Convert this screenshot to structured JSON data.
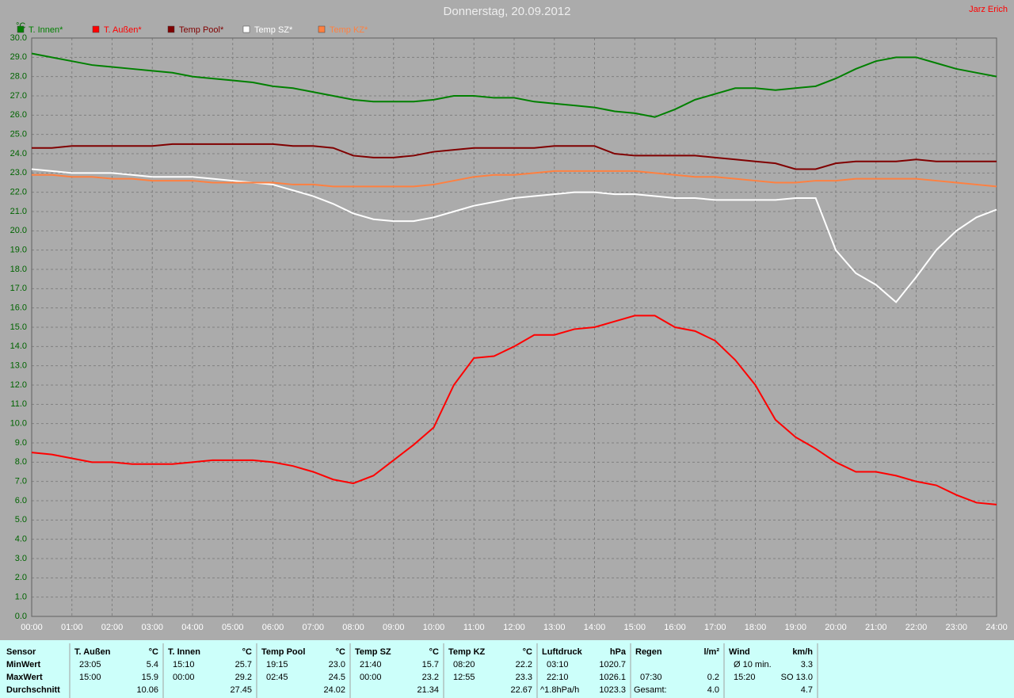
{
  "chart_data": {
    "type": "line",
    "title": "Donnerstag, 20.09.2012",
    "author": "Jarz Erich",
    "y_unit": "°C",
    "xlim": [
      0,
      24
    ],
    "ylim": [
      0,
      30
    ],
    "xticks": [
      {
        "value": 0,
        "label": "00:00"
      },
      {
        "value": 1,
        "label": "01:00"
      },
      {
        "value": 2,
        "label": "02:00"
      },
      {
        "value": 3,
        "label": "03:00"
      },
      {
        "value": 4,
        "label": "04:00"
      },
      {
        "value": 5,
        "label": "05:00"
      },
      {
        "value": 6,
        "label": "06:00"
      },
      {
        "value": 7,
        "label": "07:00"
      },
      {
        "value": 8,
        "label": "08:00"
      },
      {
        "value": 9,
        "label": "09:00"
      },
      {
        "value": 10,
        "label": "10:00"
      },
      {
        "value": 11,
        "label": "11:00"
      },
      {
        "value": 12,
        "label": "12:00"
      },
      {
        "value": 13,
        "label": "13:00"
      },
      {
        "value": 14,
        "label": "14:00"
      },
      {
        "value": 15,
        "label": "15:00"
      },
      {
        "value": 16,
        "label": "16:00"
      },
      {
        "value": 17,
        "label": "17:00"
      },
      {
        "value": 18,
        "label": "18:00"
      },
      {
        "value": 19,
        "label": "19:00"
      },
      {
        "value": 20,
        "label": "20:00"
      },
      {
        "value": 21,
        "label": "21:00"
      },
      {
        "value": 22,
        "label": "22:00"
      },
      {
        "value": 23,
        "label": "23:00"
      },
      {
        "value": 24,
        "label": "24:00"
      }
    ],
    "yticks": [
      {
        "value": 0,
        "label": "0.0"
      },
      {
        "value": 1,
        "label": "1.0"
      },
      {
        "value": 2,
        "label": "2.0"
      },
      {
        "value": 3,
        "label": "3.0"
      },
      {
        "value": 4,
        "label": "4.0"
      },
      {
        "value": 5,
        "label": "5.0"
      },
      {
        "value": 6,
        "label": "6.0"
      },
      {
        "value": 7,
        "label": "7.0"
      },
      {
        "value": 8,
        "label": "8.0"
      },
      {
        "value": 9,
        "label": "9.0"
      },
      {
        "value": 10,
        "label": "10.0"
      },
      {
        "value": 11,
        "label": "11.0"
      },
      {
        "value": 12,
        "label": "12.0"
      },
      {
        "value": 13,
        "label": "13.0"
      },
      {
        "value": 14,
        "label": "14.0"
      },
      {
        "value": 15,
        "label": "15.0"
      },
      {
        "value": 16,
        "label": "16.0"
      },
      {
        "value": 17,
        "label": "17.0"
      },
      {
        "value": 18,
        "label": "18.0"
      },
      {
        "value": 19,
        "label": "19.0"
      },
      {
        "value": 20,
        "label": "20.0"
      },
      {
        "value": 21,
        "label": "21.0"
      },
      {
        "value": 22,
        "label": "22.0"
      },
      {
        "value": 23,
        "label": "23.0"
      },
      {
        "value": 24,
        "label": "24.0"
      },
      {
        "value": 25,
        "label": "25.0"
      },
      {
        "value": 26,
        "label": "26.0"
      },
      {
        "value": 27,
        "label": "27.0"
      },
      {
        "value": 28,
        "label": "28.0"
      },
      {
        "value": 29,
        "label": "29.0"
      },
      {
        "value": 30,
        "label": "30.0"
      }
    ],
    "grid": true,
    "x": [
      0,
      0.5,
      1,
      1.5,
      2,
      2.5,
      3,
      3.5,
      4,
      4.5,
      5,
      5.5,
      6,
      6.5,
      7,
      7.5,
      8,
      8.5,
      9,
      9.5,
      10,
      10.5,
      11,
      11.5,
      12,
      12.5,
      13,
      13.5,
      14,
      14.5,
      15,
      15.5,
      16,
      16.5,
      17,
      17.5,
      18,
      18.5,
      19,
      19.5,
      20,
      20.5,
      21,
      21.5,
      22,
      22.5,
      23,
      23.5,
      24
    ],
    "series": [
      {
        "name": "T. Innen*",
        "color": "#008000",
        "values": [
          29.2,
          29.0,
          28.8,
          28.6,
          28.5,
          28.4,
          28.3,
          28.2,
          28.0,
          27.9,
          27.8,
          27.7,
          27.5,
          27.4,
          27.2,
          27.0,
          26.8,
          26.7,
          26.7,
          26.7,
          26.8,
          27.0,
          27.0,
          26.9,
          26.9,
          26.7,
          26.6,
          26.5,
          26.4,
          26.2,
          26.1,
          25.9,
          26.3,
          26.8,
          27.1,
          27.4,
          27.4,
          27.3,
          27.4,
          27.5,
          27.9,
          28.4,
          28.8,
          29.0,
          29.0,
          28.7,
          28.4,
          28.2,
          28.0
        ]
      },
      {
        "name": "T. Außen*",
        "color": "#ff0000",
        "values": [
          8.5,
          8.4,
          8.2,
          8.0,
          8.0,
          7.9,
          7.9,
          7.9,
          8.0,
          8.1,
          8.1,
          8.1,
          8.0,
          7.8,
          7.5,
          7.1,
          6.9,
          7.3,
          8.1,
          8.9,
          9.8,
          12.0,
          13.4,
          13.5,
          14.0,
          14.6,
          14.6,
          14.9,
          15.0,
          15.3,
          15.6,
          15.6,
          15.0,
          14.8,
          14.3,
          13.3,
          12.0,
          10.2,
          9.3,
          8.7,
          8.0,
          7.5,
          7.5,
          7.3,
          7.0,
          6.8,
          6.3,
          5.9,
          5.8
        ]
      },
      {
        "name": "Temp Pool*",
        "color": "#800000",
        "values": [
          24.3,
          24.3,
          24.4,
          24.4,
          24.4,
          24.4,
          24.4,
          24.5,
          24.5,
          24.5,
          24.5,
          24.5,
          24.5,
          24.4,
          24.4,
          24.3,
          23.9,
          23.8,
          23.8,
          23.9,
          24.1,
          24.2,
          24.3,
          24.3,
          24.3,
          24.3,
          24.4,
          24.4,
          24.4,
          24.0,
          23.9,
          23.9,
          23.9,
          23.9,
          23.8,
          23.7,
          23.6,
          23.5,
          23.2,
          23.2,
          23.5,
          23.6,
          23.6,
          23.6,
          23.7,
          23.6,
          23.6,
          23.6,
          23.6
        ]
      },
      {
        "name": "Temp SZ*",
        "color": "#ffffff",
        "values": [
          23.2,
          23.1,
          23.0,
          23.0,
          23.0,
          22.9,
          22.8,
          22.8,
          22.8,
          22.7,
          22.6,
          22.5,
          22.4,
          22.1,
          21.8,
          21.4,
          20.9,
          20.6,
          20.5,
          20.5,
          20.7,
          21.0,
          21.3,
          21.5,
          21.7,
          21.8,
          21.9,
          22.0,
          22.0,
          21.9,
          21.9,
          21.8,
          21.7,
          21.7,
          21.6,
          21.6,
          21.6,
          21.6,
          21.7,
          21.7,
          19.0,
          17.8,
          17.2,
          16.3,
          17.6,
          19.0,
          20.0,
          20.7,
          21.1
        ]
      },
      {
        "name": "Temp KZ*",
        "color": "#ff8040",
        "values": [
          22.9,
          22.9,
          22.8,
          22.8,
          22.7,
          22.7,
          22.6,
          22.6,
          22.6,
          22.5,
          22.5,
          22.5,
          22.5,
          22.4,
          22.4,
          22.3,
          22.3,
          22.3,
          22.3,
          22.3,
          22.4,
          22.6,
          22.8,
          22.9,
          22.9,
          23.0,
          23.1,
          23.1,
          23.1,
          23.1,
          23.1,
          23.0,
          22.9,
          22.8,
          22.8,
          22.7,
          22.6,
          22.5,
          22.5,
          22.6,
          22.6,
          22.7,
          22.7,
          22.7,
          22.7,
          22.6,
          22.5,
          22.4,
          22.3
        ]
      }
    ]
  },
  "table": {
    "rows": [
      [
        "Sensor",
        "T. Außen",
        "°C",
        "T. Innen",
        "°C",
        "Temp Pool",
        "°C",
        "Temp SZ",
        "°C",
        "Temp KZ",
        "°C",
        "Luftdruck",
        "hPa",
        "Regen",
        "l/m²",
        "Wind",
        "km/h"
      ],
      [
        "MinWert",
        "23:05",
        "5.4",
        "15:10",
        "25.7",
        "19:15",
        "23.0",
        "21:40",
        "15.7",
        "08:20",
        "22.2",
        "03:10",
        "1020.7",
        null,
        null,
        "Ø 10 min.",
        "3.3"
      ],
      [
        "MaxWert",
        "15:00",
        "15.9",
        "00:00",
        "29.2",
        "02:45",
        "24.5",
        "00:00",
        "23.2",
        "12:55",
        "23.3",
        "22:10",
        "1026.1",
        "07:30",
        "0.2",
        "15:20",
        "SO 13.0"
      ],
      [
        "Durchschnitt",
        null,
        "10.06",
        null,
        "27.45",
        null,
        "24.02",
        null,
        "21.34",
        null,
        "22.67",
        "^1.8hPa/h",
        "1023.3",
        "Gesamt:",
        "4.0",
        null,
        "4.7"
      ]
    ]
  }
}
